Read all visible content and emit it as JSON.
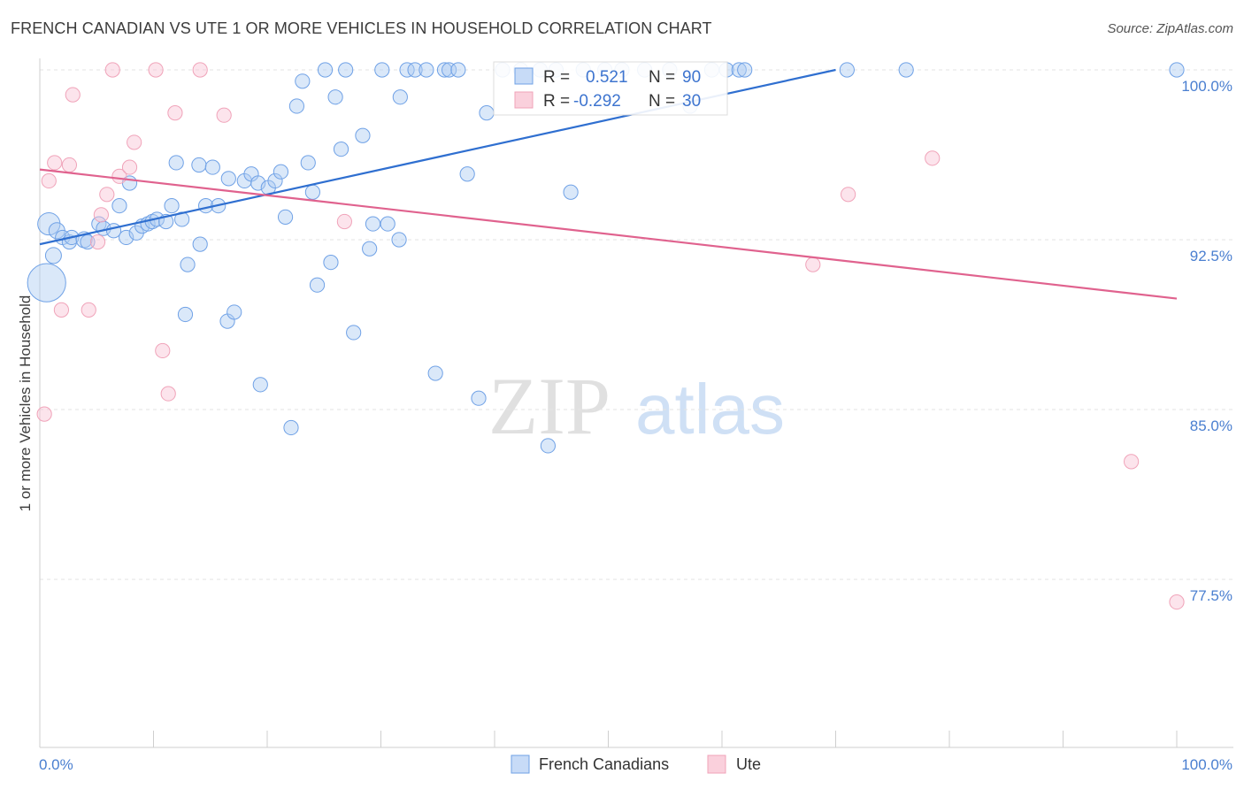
{
  "header": {
    "title": "FRENCH CANADIAN VS UTE 1 OR MORE VEHICLES IN HOUSEHOLD CORRELATION CHART",
    "source": "Source: ZipAtlas.com"
  },
  "watermark": {
    "part1": "ZIP",
    "part2": "atlas"
  },
  "colors": {
    "blue": "#6fa1e6",
    "blue_line": "#2f6fd0",
    "pink": "#f0a3b9",
    "pink_line": "#e0628e"
  },
  "legend": {
    "series": [
      {
        "r_label": "R =",
        "r_value": "0.521",
        "n_label": "N =",
        "n_value": "90"
      },
      {
        "r_label": "R =",
        "r_value": "-0.292",
        "n_label": "N =",
        "n_value": "30"
      }
    ]
  },
  "chart_data": {
    "type": "scatter",
    "title": "FRENCH CANADIAN VS UTE 1 OR MORE VEHICLES IN HOUSEHOLD CORRELATION CHART",
    "xlabel": "",
    "ylabel": "1 or more Vehicles in Household",
    "xlim": [
      0,
      100
    ],
    "ylim": [
      70.0,
      100.8
    ],
    "x_ticks": [
      "0.0%",
      "100.0%"
    ],
    "y_ticks": [
      {
        "value": 100.0,
        "label": "100.0%"
      },
      {
        "value": 92.5,
        "label": "92.5%"
      },
      {
        "value": 85.0,
        "label": "85.0%"
      },
      {
        "value": 77.5,
        "label": "77.5%"
      }
    ],
    "grid": true,
    "series": [
      {
        "name": "French Canadians",
        "color": "#6fa1e6",
        "trend": {
          "x": [
            0,
            70
          ],
          "y": [
            92.3,
            100.0
          ]
        },
        "points": [
          [
            0.8,
            93.2,
            1.4
          ],
          [
            1.5,
            92.9,
            1.0
          ],
          [
            2.0,
            92.6,
            0.9
          ],
          [
            1.2,
            91.8,
            1.0
          ],
          [
            0.6,
            90.6,
            2.4
          ],
          [
            2.6,
            92.4,
            0.9
          ],
          [
            2.8,
            92.6,
            0.9
          ],
          [
            3.9,
            92.5,
            1.0
          ],
          [
            4.2,
            92.4,
            0.9
          ],
          [
            5.2,
            93.2,
            0.9
          ],
          [
            5.6,
            93.0,
            0.9
          ],
          [
            6.5,
            92.9,
            0.9
          ],
          [
            7.0,
            94.0,
            0.9
          ],
          [
            7.6,
            92.6,
            0.9
          ],
          [
            7.9,
            95.0,
            0.9
          ],
          [
            8.5,
            92.8,
            0.9
          ],
          [
            9.0,
            93.1,
            0.9
          ],
          [
            9.5,
            93.2,
            0.9
          ],
          [
            9.9,
            93.3,
            0.9
          ],
          [
            10.3,
            93.4,
            0.9
          ],
          [
            11.1,
            93.3,
            0.9
          ],
          [
            11.6,
            94.0,
            0.9
          ],
          [
            12.0,
            95.9,
            0.9
          ],
          [
            12.5,
            93.4,
            0.9
          ],
          [
            13.0,
            91.4,
            0.9
          ],
          [
            12.8,
            89.2,
            0.9
          ],
          [
            14.1,
            92.3,
            0.9
          ],
          [
            14.0,
            95.8,
            0.9
          ],
          [
            14.6,
            94.0,
            0.9
          ],
          [
            15.2,
            95.7,
            0.9
          ],
          [
            15.7,
            94.0,
            0.9
          ],
          [
            16.6,
            95.2,
            0.9
          ],
          [
            16.5,
            88.9,
            0.9
          ],
          [
            17.1,
            89.3,
            0.9
          ],
          [
            18.0,
            95.1,
            0.9
          ],
          [
            18.6,
            95.4,
            0.9
          ],
          [
            19.2,
            95.0,
            0.9
          ],
          [
            19.4,
            86.1,
            0.9
          ],
          [
            20.1,
            94.8,
            0.9
          ],
          [
            20.7,
            95.1,
            0.9
          ],
          [
            21.2,
            95.5,
            0.9
          ],
          [
            21.6,
            93.5,
            0.9
          ],
          [
            22.1,
            84.2,
            0.9
          ],
          [
            22.6,
            98.4,
            0.9
          ],
          [
            23.1,
            99.5,
            0.9
          ],
          [
            23.6,
            95.9,
            0.9
          ],
          [
            24.0,
            94.6,
            0.9
          ],
          [
            24.4,
            90.5,
            0.9
          ],
          [
            25.1,
            100.0,
            0.9
          ],
          [
            25.6,
            91.5,
            0.9
          ],
          [
            26.0,
            98.8,
            0.9
          ],
          [
            26.5,
            96.5,
            0.9
          ],
          [
            26.9,
            100.0,
            0.9
          ],
          [
            27.6,
            88.4,
            0.9
          ],
          [
            28.4,
            97.1,
            0.9
          ],
          [
            29.0,
            92.1,
            0.9
          ],
          [
            29.3,
            93.2,
            0.9
          ],
          [
            30.1,
            100.0,
            0.9
          ],
          [
            30.6,
            93.2,
            0.9
          ],
          [
            31.6,
            92.5,
            0.9
          ],
          [
            31.7,
            98.8,
            0.9
          ],
          [
            32.3,
            100.0,
            0.9
          ],
          [
            33.0,
            100.0,
            0.9
          ],
          [
            34.0,
            100.0,
            0.9
          ],
          [
            34.8,
            86.6,
            0.9
          ],
          [
            35.6,
            100.0,
            0.9
          ],
          [
            36.0,
            100.0,
            0.9
          ],
          [
            36.8,
            100.0,
            0.9
          ],
          [
            37.6,
            95.4,
            0.9
          ],
          [
            38.6,
            85.5,
            0.9
          ],
          [
            39.3,
            98.1,
            0.9
          ],
          [
            40.7,
            100.0,
            0.9
          ],
          [
            42.3,
            100.0,
            0.9
          ],
          [
            44.0,
            100.0,
            0.9
          ],
          [
            45.4,
            100.0,
            0.9
          ],
          [
            44.7,
            83.4,
            0.9
          ],
          [
            46.7,
            94.6,
            0.9
          ],
          [
            47.8,
            100.0,
            0.9
          ],
          [
            49.7,
            100.0,
            0.9
          ],
          [
            51.2,
            100.0,
            0.9
          ],
          [
            53.2,
            100.0,
            0.9
          ],
          [
            55.4,
            100.0,
            0.9
          ],
          [
            57.2,
            98.4,
            0.9
          ],
          [
            59.1,
            100.0,
            0.9
          ],
          [
            60.4,
            100.0,
            0.9
          ],
          [
            61.5,
            100.0,
            0.9
          ],
          [
            62.0,
            100.0,
            0.9
          ],
          [
            71.0,
            100.0,
            0.9
          ],
          [
            76.2,
            100.0,
            0.9
          ],
          [
            100.0,
            100.0,
            0.9
          ]
        ]
      },
      {
        "name": "Ute",
        "color": "#f0a3b9",
        "trend": {
          "x": [
            0,
            100
          ],
          "y": [
            95.6,
            89.9
          ]
        },
        "points": [
          [
            0.4,
            84.8,
            0.9
          ],
          [
            0.8,
            95.1,
            0.9
          ],
          [
            1.3,
            95.9,
            0.9
          ],
          [
            1.9,
            89.4,
            0.9
          ],
          [
            2.6,
            95.8,
            0.9
          ],
          [
            2.9,
            98.9,
            0.9
          ],
          [
            4.3,
            89.4,
            0.9
          ],
          [
            5.1,
            92.4,
            0.9
          ],
          [
            5.4,
            93.6,
            0.9
          ],
          [
            5.9,
            94.5,
            0.9
          ],
          [
            6.4,
            100.0,
            0.9
          ],
          [
            7.0,
            95.3,
            0.9
          ],
          [
            7.9,
            95.7,
            0.9
          ],
          [
            8.3,
            96.8,
            0.9
          ],
          [
            10.2,
            100.0,
            0.9
          ],
          [
            10.8,
            87.6,
            0.9
          ],
          [
            11.3,
            85.7,
            0.9
          ],
          [
            11.9,
            98.1,
            0.9
          ],
          [
            14.1,
            100.0,
            0.9
          ],
          [
            16.2,
            98.0,
            0.9
          ],
          [
            26.8,
            93.3,
            0.9
          ],
          [
            68.0,
            91.4,
            0.9
          ],
          [
            71.1,
            94.5,
            0.9
          ],
          [
            78.5,
            96.1,
            0.9
          ],
          [
            96.0,
            82.7,
            0.9
          ],
          [
            100.0,
            76.5,
            0.9
          ]
        ]
      }
    ],
    "legend_position": "top-center"
  }
}
